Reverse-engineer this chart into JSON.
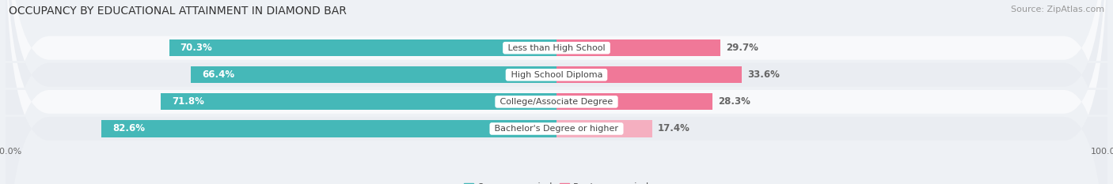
{
  "title": "OCCUPANCY BY EDUCATIONAL ATTAINMENT IN DIAMOND BAR",
  "source": "Source: ZipAtlas.com",
  "categories": [
    "Less than High School",
    "High School Diploma",
    "College/Associate Degree",
    "Bachelor's Degree or higher"
  ],
  "owner_values": [
    70.3,
    66.4,
    71.8,
    82.6
  ],
  "renter_values": [
    29.7,
    33.6,
    28.3,
    17.4
  ],
  "owner_color": "#45b8b8",
  "renter_color": "#f07898",
  "renter_color_light": "#f5afc0",
  "bg_color": "#eef1f5",
  "row_colors": [
    "#f8f9fb",
    "#eaedf2"
  ],
  "title_fontsize": 10,
  "source_fontsize": 8,
  "label_fontsize": 8.5,
  "cat_fontsize": 8,
  "tick_fontsize": 8,
  "legend_fontsize": 8.5,
  "bar_height": 0.62
}
